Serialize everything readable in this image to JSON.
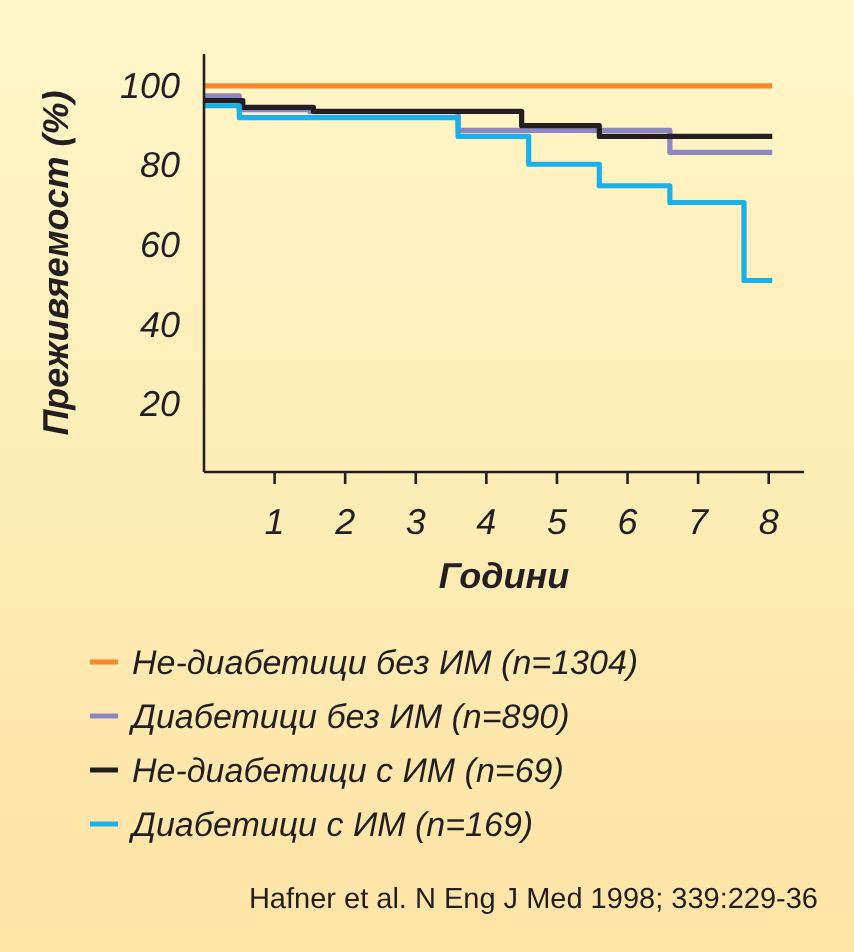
{
  "chart_data": {
    "type": "step",
    "xlabel": "Години",
    "ylabel": "Преживяемост (%)",
    "xlim": [
      0,
      8.5
    ],
    "ylim": [
      3,
      108
    ],
    "xticks": [
      1,
      2,
      3,
      4,
      5,
      6,
      7,
      8
    ],
    "yticks": [
      20,
      40,
      60,
      80,
      100
    ],
    "series": [
      {
        "name": "Не-диабетици без ИМ (n=1304)",
        "color": "#f7882f",
        "x": [
          0,
          8.05
        ],
        "values": [
          100,
          100
        ]
      },
      {
        "name": "Диабетици без ИМ (n=890)",
        "color": "#8c86c2",
        "x": [
          0,
          0.5,
          1.5,
          3.6,
          6.6,
          8.05
        ],
        "values": [
          97.5,
          94,
          93.5,
          88.8,
          83.3,
          83.3
        ]
      },
      {
        "name": "Не-диабетици с ИМ (n=69)",
        "color": "#231f20",
        "x": [
          0,
          0.55,
          1.55,
          4.5,
          5.6,
          8.05
        ],
        "values": [
          96.3,
          94.6,
          93.6,
          90,
          87.3,
          87.3
        ]
      },
      {
        "name": "Диабетици с ИМ (n=169)",
        "color": "#1ab0ea",
        "x": [
          0,
          0.5,
          3.6,
          4.6,
          5.6,
          6.6,
          7.65,
          8.05
        ],
        "values": [
          95,
          92,
          87.3,
          80.3,
          74.9,
          70.7,
          51.1,
          51.1
        ]
      }
    ],
    "legend": "bottom",
    "grid": false,
    "annotations": [
      "Hafner et al. N Eng J Med 1998; 339:229-36"
    ]
  }
}
